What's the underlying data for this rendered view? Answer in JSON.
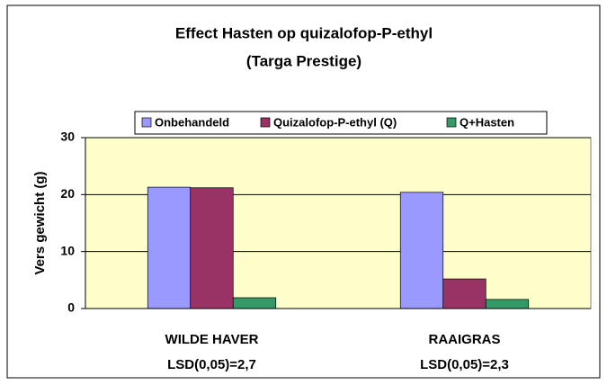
{
  "chart_data": {
    "type": "bar",
    "title": [
      "Effect Hasten op quizalofop-P-ethyl",
      "(Targa Prestige)"
    ],
    "y_label": "Vers gewicht (g)",
    "categories": [
      [
        "WILDE HAVER",
        "LSD(0,05)=2,7"
      ],
      [
        "RAAIGRAS",
        "LSD(0,05)=2,3"
      ]
    ],
    "series": [
      {
        "name": "Onbehandeld",
        "color": "#9999ff",
        "values": [
          21.3,
          20.4
        ]
      },
      {
        "name": "Quizalofop-P-ethyl (Q)",
        "color": "#993366",
        "values": [
          21.2,
          5.2
        ]
      },
      {
        "name": "Q+Hasten",
        "color": "#339966",
        "values": [
          1.9,
          1.6
        ]
      }
    ],
    "ylim": [
      0,
      30
    ],
    "yticks": [
      0,
      10,
      20,
      30
    ],
    "grid": true,
    "legend": "top"
  }
}
